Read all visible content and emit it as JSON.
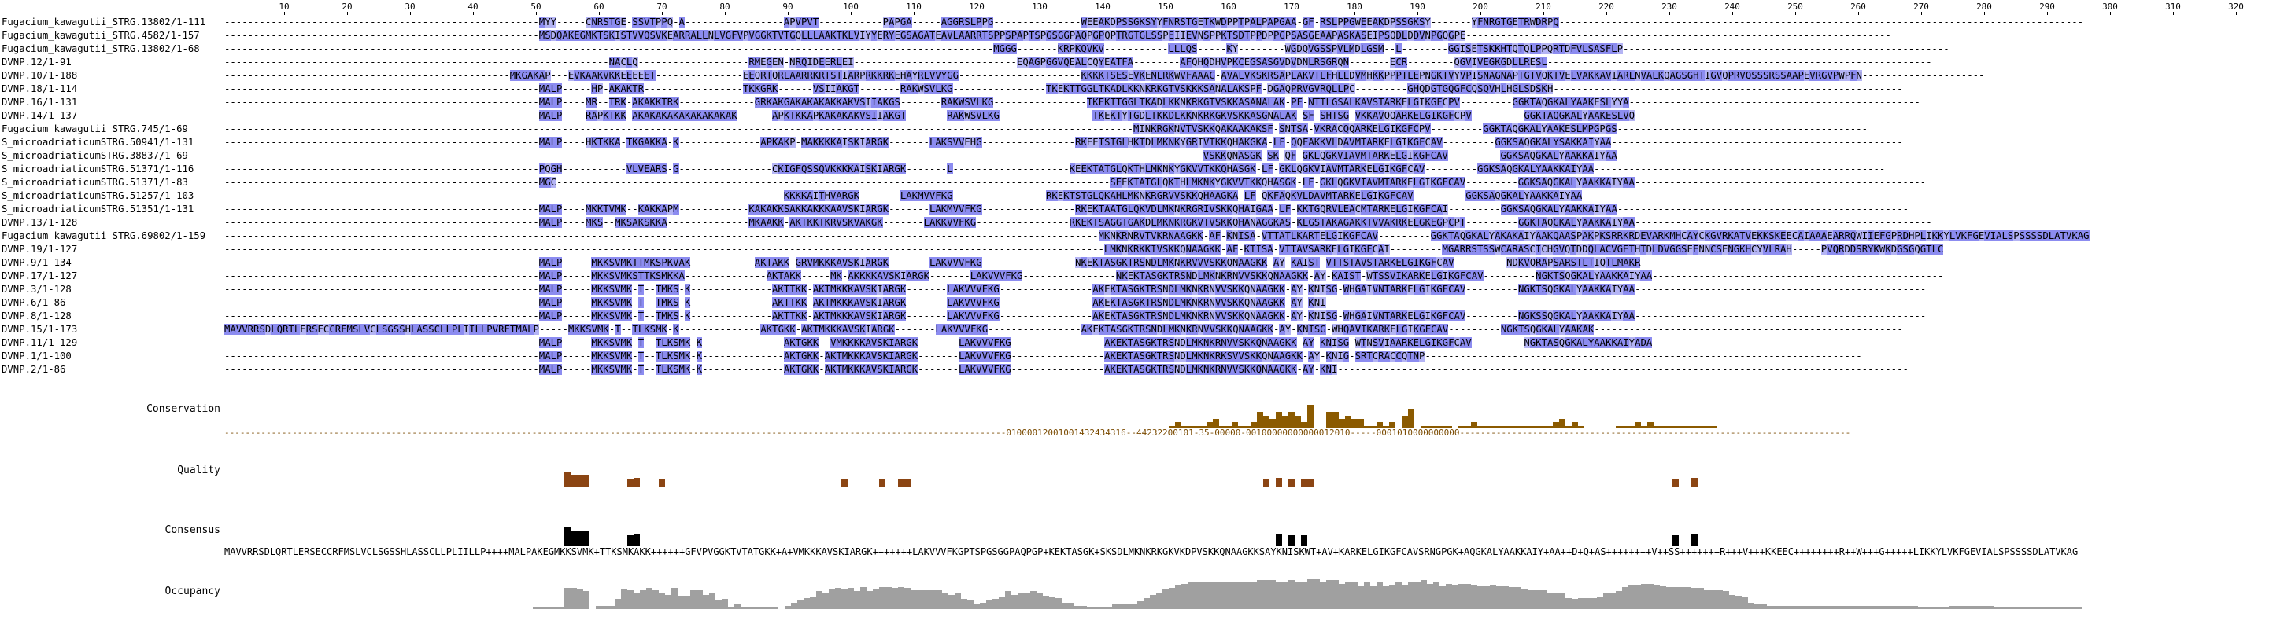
{
  "ruler": [
    10,
    20,
    30,
    40,
    50,
    60,
    70,
    80,
    90,
    100,
    110,
    120,
    130,
    140,
    150,
    160,
    170,
    180,
    190,
    200,
    210,
    220,
    230,
    240,
    250,
    260,
    270,
    280,
    290,
    300,
    310,
    320
  ],
  "sequences": [
    {
      "name": "Fugacium_kawagutii_STRG.13802/1-111",
      "seq": "------------------------------------------------------MYY-----CNRSTGE-SSVTPPQ-A-----------------APVPVT-----------PAPGA-----AGGRSLPPG---------------WEEAKDPSSGKSYYFNRSTGETKWDPPTPALPAPGAA-GF-RSLPPGWEEAKDPSSGKSY-------YFNRGTGETRWDRPQ------------------------------------------------------------------------------------------"
    },
    {
      "name": "Fugacium_kawagutii_STRG.4582/1-157",
      "seq": "------------------------------------------------------MSDQAKEGMKTSKISTVVQSVKEARRALLNLVGFVPVGGKTVTGQLLLAAKTKLVIYYERYEGSAGATEAVLAARRTSPPSPAPTSPGSGGPAQPGPQPTRGTGLSSPEIIEVNSPPKTSDTPPDPPGPSASGEAAPASKASEIPSQDLDDVNPGQGPE-------------------------------------------------------------------------"
    },
    {
      "name": "Fugacium_kawagutii_STRG.13802/1-68",
      "seq": "------------------------------------------------------------------------------------------------------------------------------------MGGG-------KRPKQVKV-----------LLLQS-----KY--------WGDQVGSSPVLMDLGSM--L--------GGISETSKKHTQTQLPPQRTDFVLSASFLP--------------------------------------------------------"
    },
    {
      "name": "DVNP.12/1-91",
      "seq": "------------------------------------------------------------------NACLQ-------------------RMEGEN-NRQIDEERLEI----------------------------EQAGPGGVQEALCQYEATFA--------AFQHQDHVPKCEGSASGVDVDNLRSGRQN-------ECR--------QGVIVEGKGDLLRESL------------------------------------------------------------------"
    },
    {
      "name": "DVNP.10/1-188",
      "seq": "-------------------------------------------------MKGAKAP---EVKAAKVKKEEEEET---------------EEQRTQRLAARRKRTSTIARPRKKRKEHAYRLVVYGG---------------------KKKKTSESEVKENLRKWVFAAAG-AVALVKSKRSAPLAKVTLFHLLDVMHKKPPPTLEPNGKTVYVPISNAGNAPTGTVQKTVELVAKKAVIARLNVALKQAGSGHTIGVQPRVQSSSRSSAAPEVRGVPWPFN---------------------"
    },
    {
      "name": "DVNP.18/1-114",
      "seq": "------------------------------------------------------MALP-----HP-AKAKTR-----------------TKKGRK------VSIIAKGT-------RAKWSVLKG----------------TKEKTTGGLTKADLKKNKRKGTVSKKKSANALAKSPF-DGAQPRVGVRQLLPC---------GHQDGTGQGFCQSQVHLHGLSDSKH------------------------------------------------------------"
    },
    {
      "name": "DVNP.16/1-131",
      "seq": "------------------------------------------------------MALP----MR--TRK-AKAKKTRK-------------GRKAKGAKAKAKAKKAKVSIIAKGS-------RAKWSVLKG----------------TKEKTTGGLTKADLKKNKRKGTVSKKASANALAK-PF-NTTLGSALKAVSTARKELGIKGFCPV---------GGKTAQGKALYAAKESLYYA--------------------------------------------------"
    },
    {
      "name": "DVNP.14/1-137",
      "seq": "------------------------------------------------------MALP----RAPKTKK-AKAKAKAKAKAKAKAKAK------APKTKKAPKAKAKAKVSIIAKGT-------RAKWSVLKG----------------TKEKTYTGDLTKKDLKKNKRKGKVSKKASGNALAK-SF-SHTSG-VKKAVQQARKELGIKGFCPV---------GGKTAQGKALYAAKESLVQ--------------------------------------------------"
    },
    {
      "name": "Fugacium_kawagutii_STRG.745/1-69",
      "seq": "------------------------------------------------------------------------------------------------------------------------------------------------------------MINKRGKNVTVSKKQAKAAKAKSF-SNTSA-VKRACQQARKELGIKGFCPV---------GGKTAQGKALYAAKESLMPGPGS-------------------------------------------"
    },
    {
      "name": "S_microadriaticumSTRG.50941/1-131",
      "seq": "------------------------------------------------------MALP----HKTKKA-TKGAKKA-K--------------APKAKP-MAKKKKAISKIARGK-------LAKSVVEHG----------------RKEETSTGLHKTDLMKNKYGRIVTKKQHAKGKA-LF-QQFAKKVLDAVMTARKELGIKGFCAV---------GGKSAQGKALYSAKKAIYAA--------------------------------------------------"
    },
    {
      "name": "S_microadriaticumSTRG.38837/1-69",
      "seq": "------------------------------------------------------------------------------------------------------------------------------------------------------------------------VSKKQNASGK-SK-QF-GKLQGKVIAVMTARKELGIKGFCAV---------GGKSAQGKALYAAKKAIYAA--------------------------------------------------"
    },
    {
      "name": "S_microadriaticumSTRG.51371/1-116",
      "seq": "------------------------------------------------------PQGH-----------VLVEARS-G----------------CKIGFQSSQVKKKKAISKIARGK-------L--------------------KEEKTATGLQKTHLMKNKYGKVVTKKQHASGK-LF-GKLQGKVIAVMTARKELGIKGFCAV---------GGKSAQGKALYAAKKAIYAA--------------------------------------------------"
    },
    {
      "name": "S_microadriaticumSTRG.51371/1-83",
      "seq": "------------------------------------------------------MGC-----------------------------------------------------------------------------------------------SEEKTATGLQKTHLMKNKYGKVVTKKQHASGK-LF-GKLQGKVIAVMTARKELGIKGFCAV---------GGKSAQGKALYAAKKAIYAA--------------------------------------------------"
    },
    {
      "name": "S_microadriaticumSTRG.51257/1-103",
      "seq": "------------------------------------------------------------------------------------------------KKKKAITHVARGK-------LAKMVVFKG----------------RKEKTSTGLQKAHLMKNKRGRVVSKKQHAAGKA-LF-QKFAQKVLDAVMTARKELGIKGFCAV---------GGKSAQGKALYAAKKAIYAA--------------------------------------------------"
    },
    {
      "name": "S_microadriaticumSTRG.51351/1-131",
      "seq": "------------------------------------------------------MALP----MKKTVMK--KAKKAPM------------KAKAKKSAKKAKKKAAVSKIARGK-------LAKMVVFKG----------------RKEKTAATGLQKVDLMKNKRGRIVSKKQHAIGAA-LF-KKTGQRVLEACMTARKELGIKGFCAI---------GGKSAQGKALYAAKKAIYAA--------------------------------------------------"
    },
    {
      "name": "DVNP.13/1-128",
      "seq": "------------------------------------------------------MALP----MKS--MKSAKSKKA--------------MKAAKK-AKTKKTKRVSKVAKGK-------LAKKVVFKG----------------RKEKTSAGGTGAKDLMKNKRGKVTVSKKQHANAGGKAS-KLGSTAKAGAKKTVVAKRKELGKEGPCPT---------GGKTAQGKALYAAKKAIYAA---------------------------------------------------"
    },
    {
      "name": "Fugacium_kawagutii_STRG.69802/1-159",
      "seq": "------------------------------------------------------------------------------------------------------------------------------------------------------MKNKRNRVTVKRNAAGKK-AF-KNISA-VTTATLKARTELGIKGFCAV---------GGKTAQGKALYAKAKAIYAAKQAASPAKPKSRRKRDEVARKMHCAYCKGVRKATVEKKSKEECAIAAAEARRQWIIEFGPRDHPLIKKYLVKFGEVIALSPSSSSDLATVKAG"
    },
    {
      "name": "DVNP.19/1-127",
      "seq": "-------------------------------------------------------------------------------------------------------------------------------------------------------LMKNKRKKIVSKKQNAAGKK-AF-KTISA-VTTAVSARKELGIKGFCAI---------MGARRSTSSWCARASCICHGVQTDDQLACVGETHTDLDVGGSEFNNCSENGKHCYVLRAH-----PVQRDDSRYKWKDGSGQGTLC"
    },
    {
      "name": "DVNP.9/1-134",
      "seq": "------------------------------------------------------MALP-----MKKSVMKTTMKSPKVAK-----------AKTAKK-GRVMKKKAVSKIARGK-------LAKVVVFKG----------------NKEKTASGKTRSNDLMKNKRVVVSKKQNAAGKK-AY-KAIST-VTTSTAVSTARKELGIKGFCAV---------NDKVQRAPSARSTLTIQTLMAKR--------------------------------------------"
    },
    {
      "name": "DVNP.17/1-127",
      "seq": "------------------------------------------------------MALP-----MKKSVMKSTTKSMKKA--------------AKTAKK-----MK-AKKKKAVSKIARGK-------LAKVVVFKG----------------NKEKTASGKTRSNDLMKNKRNVVSKKQNAAGKK-AY-KAIST-WTSSVIKARKELGIKGFCAV---------NGKTSQGKALYAAKKAIYAA--------------------------------------------------"
    },
    {
      "name": "DVNP.3/1-128",
      "seq": "------------------------------------------------------MALP-----MKKSVMK-T--TMKS-K--------------AKTTKK-AKTMKKKAVSKIARGK-------LAKVVVFKG----------------AKEKTASGKTRSNDLMKNKRNVVSKKQNAAGKK-AY-KNISG-WHGAIVNTARKELGIKGFCAV---------NGKTSQGKALYAAKKAIYAA--------------------------------------------------"
    },
    {
      "name": "DVNP.6/1-86",
      "seq": "------------------------------------------------------MALP-----MKKSVMK-T--TMKS-K--------------AKTTKK-AKTMKKKAVSKIARGK-------LAKVVVFKG----------------AKEKTASGKTRSNDLMKNKRNVVSKKQNAAGKK-AY-KNI--------------------------------------------------------------------------------------------------"
    },
    {
      "name": "DVNP.8/1-128",
      "seq": "------------------------------------------------------MALP-----MKKSVMK-T--TMKS-K--------------AKTTKK-AKTMKKKAVSKIARGK-------LAKVVVFKG----------------AKEKTASGKTRSNDLMKNKRNVVSKKQNAAGKK-AY-KNISG-WHGAIVNTARKELGIKGFCAV---------NGKSSQGKALYAAKKAIYAA--------------------------------------------------"
    },
    {
      "name": "DVNP.15/1-173",
      "seq": "MAVVRRSDLQRTLERSECCRFMSLVCLSGSSHLASSCLLPLIILLPVRFTMALP-----MKKSVMK-T--TLKSMK-K--------------AKTGKK-AKTMKKKAVSKIARGK-------LAKVVVFKG----------------AKEKTASGKTRSNDLMKNKRNVVSKKQNAAGKK-AY-KNISG-WHQAVIKARKELGIKGFCAV---------NGKTSQGKALYAAKAK-----------------------------------------------------"
    },
    {
      "name": "DVNP.11/1-129",
      "seq": "------------------------------------------------------MALP-----MKKSVMK-T--TLKSMK-K--------------AKTGKK--VMKKKKAVSKIARGK-------LAKVVVFKG----------------AKEKTASGKTRSNDLMKNKRNVVSKKQNAAGKK-AY-KNISG-WTNSVIAARKELGIKGFCAV---------NGKTASQGKALYAAKKAIYADA-------------------------------------------------"
    },
    {
      "name": "DVNP.1/1-100",
      "seq": "------------------------------------------------------MALP-----MKKSVMK-T--TLKSMK-K--------------AKTGKK-AKTMKKKAVSKIARGK-------LAKVVVFKG----------------AKEKTASGKTRSNDLMKNKRKSVVSKKQNAAGKK-AY-KNIG-SRTCRACCQTNP---------------------------------------------------------------------------"
    },
    {
      "name": "DVNP.2/1-86",
      "seq": "------------------------------------------------------MALP-----MKKSVMK-T--TLKSMK-K--------------AKTGKK-AKTMKKKAVSKIARGK-------LAKVVVFKG----------------AKEKTASGKTRSNDLMKNKRNVVSKKQNAAGKK-AY-KNI--------------------------------------------------------------------------------------------------"
    }
  ],
  "annotations": {
    "conservation_label": "Conservation",
    "quality_label": "Quality",
    "consensus_label": "Consensus",
    "occupancy_label": "Occupancy",
    "conservation_digits": "------------------------------------------------------------------------------------------------------------------------------------------------------01000012001001432434316--44232200101-35-00000-00100000000000012010-----0001010000000000---------------------------------------------------------------------------",
    "consensus_sequence": "MAVVRRSDLQRTLERSECCRFMSLVCLSGSSHLASSCLLPLIILLP++++MALPAKEGMKKSVMK+TTKSMKAKK++++++GFVPVGGKTVTATGKK+A+VMKKKAVSKIARGK+++++++LAKVVVFKGPTSPGSGGPAQPGP+KEKTASGK+SKSDLMKNKRKGKVKDPVSKKQNAAGKKSAYKNISKWT+AV+KARKELGIKGFCAVSRNGPGK+AQGKALYAAKKAIY+AA++D+Q+AS++++++++V++SS+++++++R+++V+++KKEEC++++++++R++W+++G+++++LIKKYLVKFGEVIALSPSSSSDLATVKAG"
  },
  "colors": {
    "highlight": "#8c8cf0",
    "conservation_bar": "#8b5a00",
    "quality_low": "#8b4513",
    "quality_high": "#ffd700",
    "consensus_bar": "#000000",
    "occupancy_bar": "#a0a0a0"
  }
}
